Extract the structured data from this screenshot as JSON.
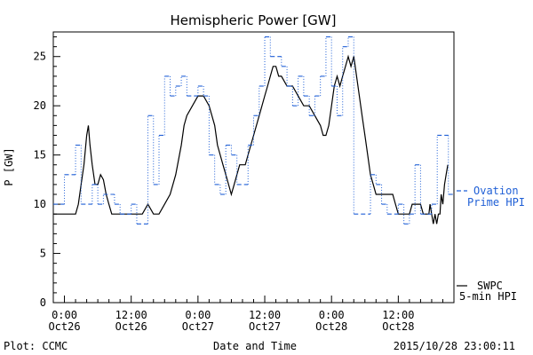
{
  "chart_data": {
    "type": "line",
    "title": "Hemispheric Power [GW]",
    "xlabel": "Date and Time",
    "ylabel": "P [GW]",
    "ylim": [
      0,
      27.5
    ],
    "xlim_hours": [
      -2,
      70
    ],
    "yticks": [
      0,
      5,
      10,
      15,
      20,
      25
    ],
    "xticks": [
      {
        "h": 0,
        "time": "0:00",
        "date": "Oct26"
      },
      {
        "h": 12,
        "time": "12:00",
        "date": "Oct26"
      },
      {
        "h": 24,
        "time": "0:00",
        "date": "Oct27"
      },
      {
        "h": 36,
        "time": "12:00",
        "date": "Oct27"
      },
      {
        "h": 48,
        "time": "0:00",
        "date": "Oct28"
      },
      {
        "h": 60,
        "time": "12:00",
        "date": "Oct28"
      }
    ],
    "grid": false,
    "legend_placement": "right",
    "series": [
      {
        "name": "SWPC 5-min HPI",
        "color": "#000000",
        "style": "solid",
        "legend_line1": "SWPC",
        "legend_line2": "5-min HPI",
        "points": [
          [
            -2,
            9
          ],
          [
            2,
            9
          ],
          [
            2.5,
            10
          ],
          [
            3,
            12
          ],
          [
            3.5,
            14
          ],
          [
            4,
            17
          ],
          [
            4.3,
            18
          ],
          [
            4.6,
            16
          ],
          [
            5,
            14
          ],
          [
            5.5,
            12
          ],
          [
            6,
            12
          ],
          [
            6.5,
            13
          ],
          [
            7,
            12.5
          ],
          [
            7.5,
            11
          ],
          [
            8,
            10
          ],
          [
            8.5,
            9
          ],
          [
            14,
            9
          ],
          [
            15,
            10
          ],
          [
            16,
            9
          ],
          [
            17,
            9
          ],
          [
            18,
            10
          ],
          [
            19,
            11
          ],
          [
            20,
            13
          ],
          [
            21,
            16
          ],
          [
            21.5,
            18
          ],
          [
            22,
            19
          ],
          [
            23,
            20
          ],
          [
            24,
            21
          ],
          [
            25,
            21
          ],
          [
            26,
            20
          ],
          [
            27,
            18
          ],
          [
            27.5,
            16
          ],
          [
            28,
            15
          ],
          [
            28.5,
            14
          ],
          [
            29,
            13
          ],
          [
            29.5,
            12
          ],
          [
            30,
            11
          ],
          [
            30.5,
            12
          ],
          [
            31,
            13
          ],
          [
            31.5,
            14
          ],
          [
            32.5,
            14
          ],
          [
            33,
            15
          ],
          [
            34,
            17
          ],
          [
            35,
            19
          ],
          [
            36,
            21
          ],
          [
            36.5,
            22
          ],
          [
            37,
            23
          ],
          [
            37.5,
            24
          ],
          [
            38,
            24
          ],
          [
            38.5,
            23
          ],
          [
            39,
            23
          ],
          [
            40,
            22
          ],
          [
            41,
            22
          ],
          [
            42,
            21
          ],
          [
            43,
            20
          ],
          [
            44,
            20
          ],
          [
            45,
            19
          ],
          [
            46,
            18
          ],
          [
            46.5,
            17
          ],
          [
            47,
            17
          ],
          [
            47.5,
            18
          ],
          [
            48,
            20
          ],
          [
            48.5,
            22
          ],
          [
            49,
            23
          ],
          [
            49.5,
            22
          ],
          [
            50,
            23
          ],
          [
            50.5,
            24
          ],
          [
            51,
            25
          ],
          [
            51.5,
            24
          ],
          [
            52,
            25
          ],
          [
            52.5,
            23
          ],
          [
            53,
            21
          ],
          [
            53.5,
            19
          ],
          [
            54,
            17
          ],
          [
            54.5,
            15
          ],
          [
            55,
            13
          ],
          [
            55.5,
            12
          ],
          [
            56,
            11
          ],
          [
            59,
            11
          ],
          [
            59.5,
            10
          ],
          [
            60,
            9
          ],
          [
            62,
            9
          ],
          [
            62.5,
            10
          ],
          [
            64,
            10
          ],
          [
            64.5,
            9
          ],
          [
            65.5,
            9
          ],
          [
            65.7,
            10
          ],
          [
            66,
            9
          ],
          [
            66.3,
            8
          ],
          [
            66.6,
            9
          ],
          [
            66.9,
            8
          ],
          [
            67.2,
            9
          ],
          [
            67.5,
            9
          ],
          [
            67.7,
            11
          ],
          [
            68,
            10
          ],
          [
            68.3,
            12
          ],
          [
            68.6,
            13
          ],
          [
            68.9,
            14
          ]
        ]
      },
      {
        "name": "Ovation Prime HPI",
        "color": "#1f5fd6",
        "style": "dashed-step",
        "legend_line1": "Ovation",
        "legend_line2": "Prime HPI",
        "points": [
          [
            -2,
            10
          ],
          [
            0,
            13
          ],
          [
            2,
            16
          ],
          [
            3,
            10
          ],
          [
            5,
            12
          ],
          [
            6,
            10
          ],
          [
            7,
            11
          ],
          [
            9,
            10
          ],
          [
            10,
            9
          ],
          [
            12,
            10
          ],
          [
            13,
            8
          ],
          [
            15,
            19
          ],
          [
            16,
            12
          ],
          [
            17,
            17
          ],
          [
            18,
            23
          ],
          [
            19,
            21
          ],
          [
            20,
            22
          ],
          [
            21,
            23
          ],
          [
            22,
            21
          ],
          [
            24,
            22
          ],
          [
            25,
            21
          ],
          [
            26,
            15
          ],
          [
            27,
            12
          ],
          [
            28,
            11
          ],
          [
            29,
            16
          ],
          [
            30,
            15
          ],
          [
            31,
            12
          ],
          [
            33,
            16
          ],
          [
            34,
            19
          ],
          [
            35,
            22
          ],
          [
            36,
            27
          ],
          [
            37,
            25
          ],
          [
            39,
            24
          ],
          [
            40,
            22
          ],
          [
            41,
            20
          ],
          [
            42,
            23
          ],
          [
            43,
            21
          ],
          [
            44,
            19
          ],
          [
            45,
            21
          ],
          [
            46,
            23
          ],
          [
            47,
            27
          ],
          [
            48,
            22
          ],
          [
            49,
            19
          ],
          [
            50,
            26
          ],
          [
            51,
            27
          ],
          [
            52,
            9
          ],
          [
            55,
            13
          ],
          [
            56,
            12
          ],
          [
            57,
            10
          ],
          [
            58,
            9
          ],
          [
            60,
            10
          ],
          [
            61,
            8
          ],
          [
            62,
            9
          ],
          [
            63,
            14
          ],
          [
            64,
            9
          ],
          [
            66,
            10
          ],
          [
            67,
            17
          ],
          [
            69,
            11
          ]
        ]
      }
    ]
  },
  "footer": {
    "plot_label": "Plot: CCMC",
    "timestamp": "2015/10/28 23:00:11"
  }
}
